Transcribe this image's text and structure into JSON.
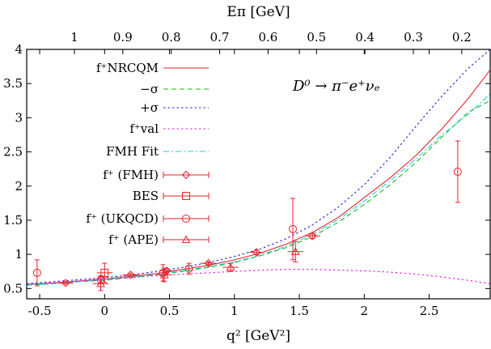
{
  "chart_data": {
    "type": "line",
    "title": "",
    "annotation": "D⁰ → π⁻e⁺νₑ",
    "xlabel": "q² [GeV²]",
    "x2label": "Eπ [GeV]",
    "ylabel": "",
    "xlim": [
      -0.6,
      2.97
    ],
    "ylim": [
      0.35,
      4.0
    ],
    "x_ticks": [
      "-0.5",
      "0",
      "0.5",
      "1",
      "1.5",
      "2",
      "2.5"
    ],
    "y_ticks": [
      "0.5",
      "1",
      "1.5",
      "2",
      "2.5",
      "3",
      "3.5",
      "4"
    ],
    "x2_ticks": [
      "1",
      "0.9",
      "0.8",
      "0.7",
      "0.6",
      "0.5",
      "0.4",
      "0.3",
      "0.2"
    ],
    "grid": false,
    "legend_position": "top-left",
    "series": [
      {
        "name": "f⁺NRCQM",
        "style": "solid",
        "color": "#e8222b",
        "x": [
          -0.6,
          -0.4,
          -0.2,
          0,
          0.2,
          0.4,
          0.6,
          0.8,
          1.0,
          1.2,
          1.4,
          1.6,
          1.8,
          2.0,
          2.2,
          2.4,
          2.6,
          2.8,
          2.97
        ],
        "y": [
          0.56,
          0.58,
          0.61,
          0.64,
          0.68,
          0.72,
          0.78,
          0.84,
          0.92,
          1.02,
          1.15,
          1.32,
          1.54,
          1.83,
          2.12,
          2.45,
          2.84,
          3.28,
          3.7
        ]
      },
      {
        "name": "−σ",
        "style": "dashed",
        "color": "#1db81d",
        "x": [
          -0.6,
          -0.4,
          -0.2,
          0,
          0.2,
          0.4,
          0.6,
          0.8,
          1.0,
          1.2,
          1.4,
          1.6,
          1.8,
          2.0,
          2.2,
          2.4,
          2.6,
          2.8,
          2.97
        ],
        "y": [
          0.55,
          0.57,
          0.6,
          0.62,
          0.66,
          0.7,
          0.75,
          0.81,
          0.88,
          0.98,
          1.1,
          1.26,
          1.47,
          1.73,
          2.02,
          2.35,
          2.72,
          3.08,
          3.25
        ]
      },
      {
        "name": "+σ",
        "style": "dotted",
        "color": "#2323d8",
        "x": [
          -0.6,
          -0.4,
          -0.2,
          0,
          0.2,
          0.4,
          0.6,
          0.8,
          1.0,
          1.2,
          1.4,
          1.6,
          1.8,
          2.0,
          2.2,
          2.4,
          2.6,
          2.8,
          2.97
        ],
        "y": [
          0.57,
          0.6,
          0.63,
          0.66,
          0.7,
          0.75,
          0.81,
          0.88,
          0.97,
          1.08,
          1.23,
          1.43,
          1.69,
          2.02,
          2.42,
          2.88,
          3.32,
          3.72,
          4.0
        ]
      },
      {
        "name": "f⁺val",
        "style": "dotted",
        "color": "#dd22dd",
        "x": [
          -0.6,
          -0.4,
          -0.2,
          0,
          0.2,
          0.4,
          0.6,
          0.8,
          1.0,
          1.2,
          1.4,
          1.6,
          1.8,
          2.0,
          2.2,
          2.4,
          2.6,
          2.8,
          2.97
        ],
        "y": [
          0.56,
          0.58,
          0.61,
          0.63,
          0.66,
          0.69,
          0.71,
          0.73,
          0.75,
          0.77,
          0.78,
          0.78,
          0.77,
          0.76,
          0.74,
          0.71,
          0.67,
          0.62,
          0.57
        ]
      },
      {
        "name": "FMH Fit",
        "style": "dashdot",
        "color": "#22ccdd",
        "x": [
          -0.6,
          -0.4,
          -0.2,
          0,
          0.2,
          0.4,
          0.6,
          0.8,
          1.0,
          1.2,
          1.4,
          1.6,
          1.8,
          2.0,
          2.2,
          2.4,
          2.6,
          2.8,
          2.97
        ],
        "y": [
          0.55,
          0.57,
          0.6,
          0.63,
          0.67,
          0.71,
          0.76,
          0.82,
          0.89,
          0.99,
          1.12,
          1.29,
          1.51,
          1.78,
          2.08,
          2.4,
          2.75,
          3.05,
          3.35
        ]
      }
    ],
    "point_series": [
      {
        "name": "f⁺ (FMH)",
        "marker": "diamond",
        "color": "#e8222b",
        "points": [
          {
            "x": -0.3,
            "y": 0.58,
            "err": 0.02
          },
          {
            "x": 0.2,
            "y": 0.7,
            "err": 0.02
          },
          {
            "x": 0.48,
            "y": 0.76,
            "err": 0.03
          },
          {
            "x": 0.8,
            "y": 0.87,
            "err": 0.02
          },
          {
            "x": 1.17,
            "y": 1.03,
            "err": 0.03
          },
          {
            "x": 1.6,
            "y": 1.27,
            "err": 0.04
          }
        ],
        "xerr": 0.06
      },
      {
        "name": "BES",
        "marker": "square",
        "color": "#e8222b",
        "points": [
          {
            "x": 0.0,
            "y": 0.73,
            "err": 0.14
          }
        ],
        "xerr": 0.06
      },
      {
        "name": "f⁺ (UKQCD)",
        "marker": "circle",
        "color": "#e8222b",
        "points": [
          {
            "x": -0.52,
            "y": 0.73,
            "err": 0.19
          },
          {
            "x": -0.03,
            "y": 0.63,
            "err": 0.06
          },
          {
            "x": 0.45,
            "y": 0.73,
            "err": 0.12
          },
          {
            "x": 0.65,
            "y": 0.79,
            "err": 0.08
          },
          {
            "x": 1.45,
            "y": 1.37,
            "err": 0.45
          },
          {
            "x": 2.72,
            "y": 2.21,
            "err": 0.45
          }
        ],
        "xerr": 0.0
      },
      {
        "name": "f⁺ (APE)",
        "marker": "triangle",
        "color": "#e8222b",
        "points": [
          {
            "x": -0.03,
            "y": 0.57,
            "err": 0.1
          },
          {
            "x": 0.46,
            "y": 0.7,
            "err": 0.1
          },
          {
            "x": 0.97,
            "y": 0.81,
            "err": 0.06
          },
          {
            "x": 1.47,
            "y": 1.04,
            "err": 0.15
          }
        ],
        "xerr": 0.06
      }
    ]
  }
}
